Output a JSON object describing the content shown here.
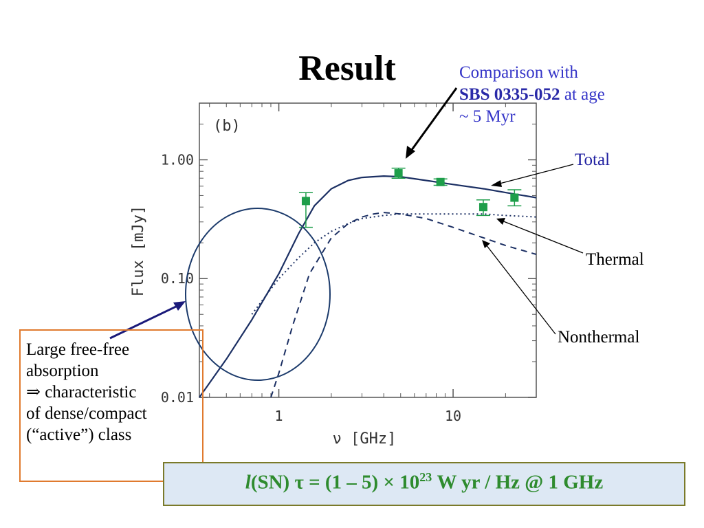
{
  "slide": {
    "title": "Result",
    "comparison": {
      "line1": "Comparison with",
      "object": "SBS 0335-052",
      "line2_rest": " at age",
      "line3": "~ 5 Myr"
    },
    "labels": {
      "total": "Total",
      "thermal": "Thermal",
      "nonthermal": "Nonthermal"
    },
    "note_lines": [
      "Large free-free",
      "absorption",
      "⇒ characteristic",
      "of dense/compact",
      "(“active”) class"
    ],
    "formula": {
      "l": "l",
      "part1": "(SN) τ = (1 – 5) × 10",
      "exp": "23",
      "part2": " W yr / Hz @ 1 GHz"
    },
    "colors": {
      "title": "#000000",
      "comparison_text": "#3535c8",
      "model_lines": "#1b2f63",
      "data_points": "#1e9e4a",
      "note_border": "#e07a2e",
      "formula_text": "#2e8b2e",
      "formula_bg": "#dde8f4"
    }
  },
  "chart_data": {
    "type": "line",
    "panel_label": "(b)",
    "xlabel": "ν [GHz]",
    "ylabel": "Flux [mJy]",
    "xscale": "log",
    "yscale": "log",
    "xlim": [
      0.35,
      30
    ],
    "ylim": [
      0.01,
      3
    ],
    "x_ticks": [
      {
        "value": 1,
        "label": "1"
      },
      {
        "value": 10,
        "label": "10"
      }
    ],
    "y_ticks": [
      {
        "value": 0.01,
        "label": "0.01"
      },
      {
        "value": 0.1,
        "label": "0.10"
      },
      {
        "value": 1.0,
        "label": "1.00"
      }
    ],
    "series": [
      {
        "name": "Total",
        "style": "solid",
        "x": [
          0.35,
          0.5,
          0.7,
          1.0,
          1.3,
          1.6,
          2.0,
          2.5,
          3.0,
          4.0,
          5.0,
          7.0,
          10,
          15,
          20,
          30
        ],
        "y": [
          0.01,
          0.021,
          0.045,
          0.11,
          0.24,
          0.41,
          0.57,
          0.67,
          0.71,
          0.73,
          0.72,
          0.67,
          0.62,
          0.57,
          0.53,
          0.48
        ]
      },
      {
        "name": "Thermal",
        "style": "dotted",
        "x": [
          0.7,
          1.0,
          1.3,
          1.6,
          2.0,
          2.5,
          3.0,
          4.0,
          5.0,
          7.0,
          10,
          15,
          20,
          30
        ],
        "y": [
          0.05,
          0.1,
          0.15,
          0.2,
          0.25,
          0.29,
          0.32,
          0.34,
          0.35,
          0.35,
          0.35,
          0.35,
          0.34,
          0.33
        ]
      },
      {
        "name": "Nonthermal",
        "style": "dashed",
        "x": [
          0.9,
          1.0,
          1.2,
          1.5,
          2.0,
          2.5,
          3.0,
          3.5,
          4.0,
          5.0,
          7.0,
          10,
          15,
          20,
          30
        ],
        "y": [
          0.01,
          0.016,
          0.04,
          0.11,
          0.22,
          0.29,
          0.33,
          0.35,
          0.36,
          0.35,
          0.32,
          0.27,
          0.22,
          0.19,
          0.16
        ]
      }
    ],
    "observations": [
      {
        "x": 1.43,
        "y": 0.45,
        "yerr_low": 0.27,
        "yerr_high": 0.53
      },
      {
        "x": 4.86,
        "y": 0.77,
        "yerr_low": 0.7,
        "yerr_high": 0.85
      },
      {
        "x": 8.46,
        "y": 0.65,
        "yerr_low": 0.61,
        "yerr_high": 0.69
      },
      {
        "x": 14.9,
        "y": 0.4,
        "yerr_low": 0.34,
        "yerr_high": 0.46
      },
      {
        "x": 22.5,
        "y": 0.48,
        "yerr_low": 0.41,
        "yerr_high": 0.56
      }
    ]
  }
}
